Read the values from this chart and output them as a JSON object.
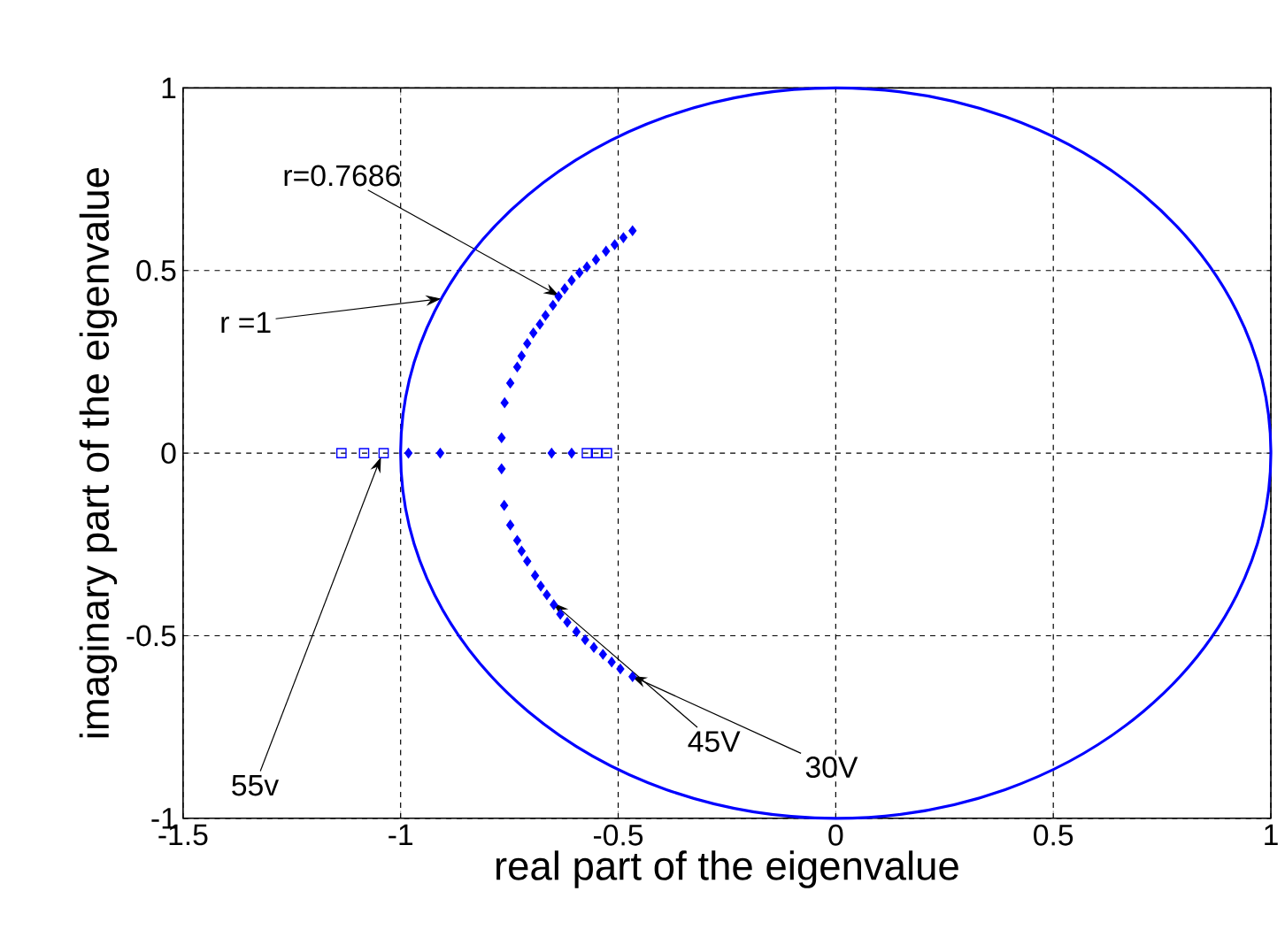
{
  "chart_data": {
    "type": "scatter",
    "xlabel": "real part of the eigenvalue",
    "ylabel": "imaginary part of the eigenvalue",
    "xlim": [
      -1.5,
      1
    ],
    "ylim": [
      -1,
      1
    ],
    "xticks": [
      -1.5,
      -1,
      -0.5,
      0,
      0.5,
      1
    ],
    "yticks": [
      -1,
      -0.5,
      0,
      0.5,
      1
    ],
    "grid": true,
    "series": [
      {
        "color": "#0000ff",
        "marker": "diamond",
        "x": [
          -0.982,
          -0.909,
          -0.653,
          -0.607,
          -0.768,
          -0.768,
          -0.761,
          -0.748,
          -0.732,
          -0.722,
          -0.709,
          -0.695,
          -0.68,
          -0.667,
          -0.65,
          -0.637,
          -0.623,
          -0.607,
          -0.589,
          -0.572,
          -0.551,
          -0.528,
          -0.508,
          -0.488,
          -0.467,
          -0.762,
          -0.748,
          -0.732,
          -0.722,
          -0.709,
          -0.691,
          -0.678,
          -0.664,
          -0.648,
          -0.633,
          -0.617,
          -0.596,
          -0.576,
          -0.556,
          -0.535,
          -0.515,
          -0.495,
          -0.467
        ],
        "values": [
          0,
          0,
          0,
          0,
          0.042,
          -0.043,
          0.138,
          0.192,
          0.236,
          0.266,
          0.3,
          0.329,
          0.353,
          0.377,
          0.405,
          0.429,
          0.45,
          0.473,
          0.494,
          0.51,
          0.53,
          0.553,
          0.571,
          0.59,
          0.609,
          -0.143,
          -0.197,
          -0.239,
          -0.268,
          -0.296,
          -0.335,
          -0.364,
          -0.388,
          -0.415,
          -0.441,
          -0.463,
          -0.489,
          -0.511,
          -0.532,
          -0.551,
          -0.572,
          -0.591,
          -0.612
        ]
      },
      {
        "color": "#0000ff",
        "marker": "square",
        "x": [
          -1.136,
          -1.084,
          -1.039,
          -0.572,
          -0.549,
          -0.526
        ],
        "values": [
          0,
          0,
          0,
          0,
          0,
          0
        ]
      }
    ],
    "annotations": [
      {
        "text": "r=0.7686",
        "x": -0.635,
        "y": 0.43
      },
      "r =1",
      {
        "text": "55v",
        "x": -1.045,
        "y": -0.01
      },
      {
        "text": "45V",
        "x": -0.65,
        "y": -0.41
      },
      {
        "text": "30V",
        "x": -0.47,
        "y": -0.61
      }
    ]
  }
}
